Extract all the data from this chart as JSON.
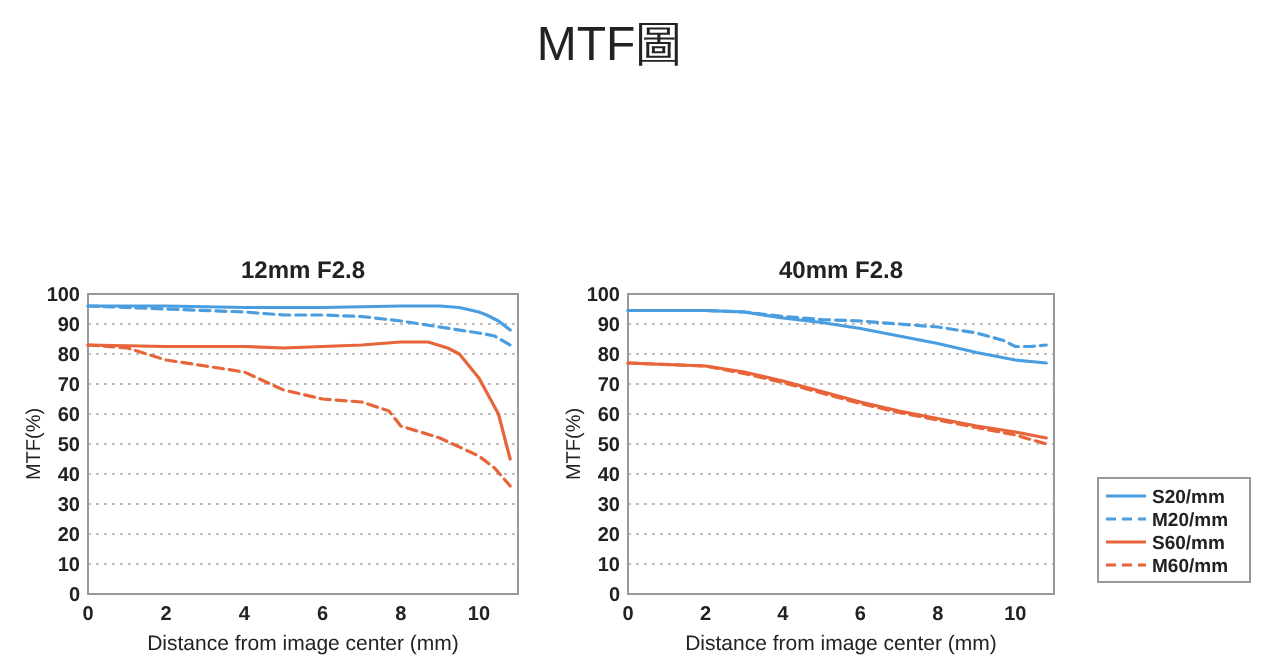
{
  "chart_data": [
    {
      "type": "line",
      "title": "12mm F2.8",
      "xlabel": "Distance from image center (mm)",
      "ylabel": "MTF(%)",
      "annotations": [
        "MTF圖"
      ],
      "xlim": [
        0,
        11
      ],
      "ylim": [
        0,
        100
      ],
      "xticks": [
        0,
        2,
        4,
        6,
        8,
        10
      ],
      "yticks": [
        0,
        10,
        20,
        30,
        40,
        50,
        60,
        70,
        80,
        90,
        100
      ],
      "grid": "y",
      "legend": false,
      "series": [
        {
          "color": "#4a9ee0",
          "line_style": "solid",
          "x": [
            0,
            2,
            4,
            5,
            6,
            8,
            9,
            9.5,
            10,
            10.2,
            10.5,
            10.8
          ],
          "values": [
            96,
            96,
            95.5,
            95.5,
            95.5,
            96,
            96,
            95.5,
            94,
            93,
            91,
            88
          ]
        },
        {
          "color": "#4a9ee0",
          "line_style": "dashed",
          "x": [
            0,
            2,
            4,
            5,
            6,
            7,
            8,
            9,
            10,
            10.4,
            10.8
          ],
          "values": [
            96,
            95,
            94,
            93,
            93,
            92.5,
            91,
            89,
            87,
            86,
            83
          ]
        },
        {
          "color": "#e8643a",
          "line_style": "solid",
          "x": [
            0,
            2,
            4,
            5,
            6,
            7,
            8,
            8.7,
            9.2,
            9.5,
            10,
            10.5,
            10.8
          ],
          "values": [
            83,
            82.5,
            82.5,
            82,
            82.5,
            83,
            84,
            84,
            82,
            80,
            72,
            60,
            45
          ]
        },
        {
          "color": "#e8643a",
          "line_style": "dashed",
          "x": [
            0,
            1,
            2,
            3,
            4,
            5,
            6,
            7,
            7.7,
            8,
            9,
            10,
            10.4,
            10.8
          ],
          "values": [
            83,
            82,
            78,
            76,
            74,
            68,
            65,
            64,
            61,
            56,
            52,
            46,
            42,
            36
          ]
        }
      ]
    },
    {
      "type": "line",
      "title": "40mm F2.8",
      "xlabel": "Distance from image center (mm)",
      "ylabel": "MTF(%)",
      "xlim": [
        0,
        11
      ],
      "ylim": [
        0,
        100
      ],
      "xticks": [
        0,
        2,
        4,
        6,
        8,
        10
      ],
      "yticks": [
        0,
        10,
        20,
        30,
        40,
        50,
        60,
        70,
        80,
        90,
        100
      ],
      "grid": "y",
      "legend": "right",
      "series": [
        {
          "name": "S20/mm",
          "color": "#4a9ee0",
          "line_style": "solid",
          "x": [
            0,
            2,
            3,
            4,
            5,
            6,
            7,
            8,
            9,
            10,
            10.8
          ],
          "values": [
            94.5,
            94.5,
            94,
            92,
            90.5,
            88.5,
            86,
            83.5,
            80.5,
            78,
            77
          ]
        },
        {
          "name": "M20/mm",
          "color": "#4a9ee0",
          "line_style": "dashed",
          "x": [
            0,
            2,
            3,
            4,
            5,
            6,
            7,
            8,
            9,
            9.7,
            10,
            10.4,
            10.8
          ],
          "values": [
            94.5,
            94.5,
            94,
            92.5,
            91.5,
            91,
            90,
            89,
            87,
            84.5,
            82.5,
            82.5,
            83
          ]
        },
        {
          "name": "S60/mm",
          "color": "#e8643a",
          "line_style": "solid",
          "x": [
            0,
            2,
            3,
            4,
            5,
            6,
            7,
            8,
            9,
            10,
            10.8
          ],
          "values": [
            77,
            76,
            74,
            71,
            67.5,
            64,
            61,
            58.5,
            56,
            54,
            52
          ]
        },
        {
          "name": "M60/mm",
          "color": "#e8643a",
          "line_style": "dashed",
          "x": [
            0,
            2,
            3,
            4,
            5,
            6,
            7,
            8,
            9,
            10,
            10.8
          ],
          "values": [
            77,
            76,
            73.5,
            70.5,
            67,
            63.5,
            60.5,
            58,
            55.5,
            53,
            50
          ]
        }
      ]
    }
  ]
}
